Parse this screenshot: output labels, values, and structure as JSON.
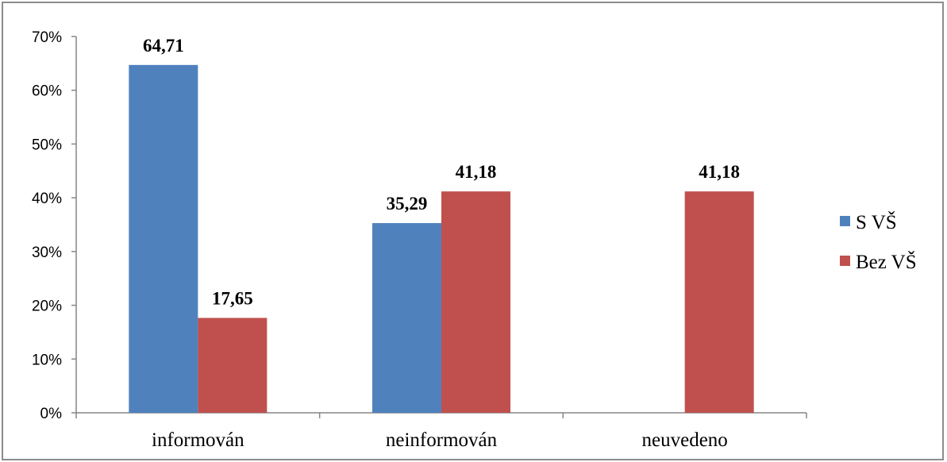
{
  "chart_data": {
    "type": "bar",
    "categories": [
      "informován",
      "neinformován",
      "neuvedeno"
    ],
    "series": [
      {
        "name": "S VŠ",
        "color": "#4f81bd",
        "values": [
          64.71,
          35.29,
          null
        ],
        "labels": [
          "64,71",
          "35,29",
          null
        ]
      },
      {
        "name": "Bez VŠ",
        "color": "#c0504d",
        "values": [
          17.65,
          41.18,
          41.18
        ],
        "labels": [
          "17,65",
          "41,18",
          "41,18"
        ]
      }
    ],
    "yticks": [
      "0%",
      "10%",
      "20%",
      "30%",
      "40%",
      "50%",
      "60%",
      "70%"
    ],
    "ylim": [
      0,
      70
    ],
    "ystep": 10,
    "grid": false,
    "legend_position": "right",
    "title": "",
    "xlabel": "",
    "ylabel": ""
  }
}
